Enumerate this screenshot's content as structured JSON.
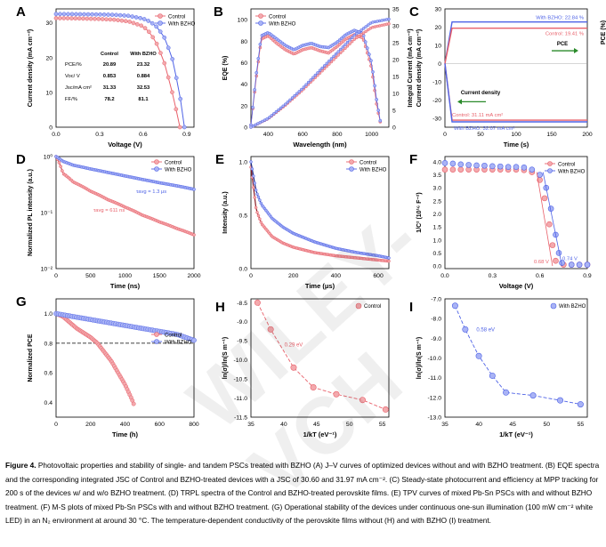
{
  "figure": {
    "colors": {
      "control": "#e8606a",
      "control_fill": "#f3a9ad",
      "bzho": "#4f63e6",
      "bzho_fill": "#a9b3f5",
      "pce_arrow": "#2a8a2a"
    },
    "panels": {
      "A": {
        "letter": "A",
        "xlabel": "Voltage (V)",
        "ylabel": "Current density (mA cm⁻²)",
        "xticks": [
          "0.0",
          "0.3",
          "0.6",
          "0.9"
        ],
        "yticks": [
          "0",
          "10",
          "20",
          "30"
        ],
        "legend": [
          "Control",
          "With BZHO"
        ],
        "table": {
          "head": [
            "",
            "Control",
            "With BZHO"
          ],
          "rows": [
            [
              "PCE/%",
              "20.89",
              "23.32"
            ],
            [
              "Voc/ V",
              "0.853",
              "0.884"
            ],
            [
              "Jsc/mA cm²",
              "31.33",
              "32.53"
            ],
            [
              "FF/%",
              "78.2",
              "81.1"
            ]
          ]
        }
      },
      "B": {
        "letter": "B",
        "xlabel": "Wavelength (nm)",
        "ylabel": "EQE (%)",
        "y2label": "Integral Current (mA cm⁻²)",
        "xticks": [
          "400",
          "600",
          "800",
          "1000"
        ],
        "yticks": [
          "0",
          "20",
          "40",
          "60",
          "80",
          "100"
        ],
        "y2ticks": [
          "0",
          "5",
          "10",
          "15",
          "20",
          "25",
          "30",
          "35"
        ],
        "legend": [
          "Control",
          "With BZHO"
        ]
      },
      "C": {
        "letter": "C",
        "xlabel": "Time (s)",
        "ylabel": "Current density (mA cm⁻²)",
        "y2label": "PCE (%)",
        "xticks": [
          "0",
          "50",
          "100",
          "150",
          "200"
        ],
        "yticks": [
          "-30",
          "-20",
          "-10",
          "0",
          "10",
          "20",
          "30"
        ],
        "ann_bzho_pce": "With BZHO: 22.84 %",
        "ann_ctrl_pce": "Control: 19.41 %",
        "ann_pce": "PCE",
        "ann_cd": "Current density",
        "ann_ctrl_cd": "Control: 31.11 mA cm²",
        "ann_bzho_cd": "With BZHO: 32.07 mA cm²"
      },
      "D": {
        "letter": "D",
        "xlabel": "Time (ns)",
        "ylabel": "Normalized PL intensity (a.u.)",
        "xticks": [
          "0",
          "500",
          "1000",
          "1500",
          "2000"
        ],
        "yticks": [
          "10⁰",
          "10⁻¹",
          "10⁻²"
        ],
        "legend": [
          "Control",
          "With BZHO"
        ],
        "ann_bzho": "τavg = 1.3 μs",
        "ann_ctrl": "τavg = 611 ns"
      },
      "E": {
        "letter": "E",
        "xlabel": "Time (μs)",
        "ylabel": "Intensity (a.u.)",
        "xticks": [
          "0",
          "200",
          "400",
          "600"
        ],
        "yticks": [
          "0.0",
          "0.5",
          "1.0"
        ],
        "legend": [
          "Control",
          "With BZHO"
        ]
      },
      "F": {
        "letter": "F",
        "xlabel": "Voltage (V)",
        "ylabel": "1/C² (10¹⁶ F⁻²)",
        "xticks": [
          "0.0",
          "0.3",
          "0.6",
          "0.9"
        ],
        "yticks": [
          "0.0",
          "0.5",
          "1.0",
          "1.5",
          "2.0",
          "2.5",
          "3.0",
          "3.5",
          "4.0"
        ],
        "legend": [
          "Control",
          "With BZHO"
        ],
        "ann_ctrl": "0.68 V",
        "ann_bzho": "0.74 V"
      },
      "G": {
        "letter": "G",
        "xlabel": "Time (h)",
        "ylabel": "Normalized PCE",
        "xticks": [
          "0",
          "200",
          "400",
          "600",
          "800"
        ],
        "yticks": [
          "0.4",
          "0.6",
          "0.8",
          "1.0"
        ],
        "legend": [
          "Control",
          "With BZHO"
        ]
      },
      "H": {
        "letter": "H",
        "xlabel": "1/kT (eV⁻¹)",
        "ylabel": "ln(σ)/ln(S m⁻¹)",
        "xticks": [
          "35",
          "40",
          "45",
          "50",
          "55"
        ],
        "yticks": [
          "-8.5",
          "-9.0",
          "-9.5",
          "-10.0",
          "-10.5",
          "-11.0",
          "-11.5"
        ],
        "legend": [
          "Control"
        ],
        "ann": "0.29 eV"
      },
      "I": {
        "letter": "I",
        "xlabel": "1/kT (eV⁻¹)",
        "ylabel": "ln(σ)/ln(S m⁻¹)",
        "xticks": [
          "35",
          "40",
          "45",
          "50",
          "55"
        ],
        "yticks": [
          "-7.0",
          "-8.0",
          "-9.0",
          "-10.0",
          "-11.0",
          "-12.0",
          "-13.0"
        ],
        "legend": [
          "With BZHO"
        ],
        "ann": "0.58 eV"
      }
    }
  },
  "chart_data": [
    {
      "panel": "A",
      "type": "line",
      "xlim": [
        0,
        0.95
      ],
      "ylim": [
        0,
        34
      ],
      "series": [
        {
          "name": "Control",
          "x": [
            0,
            0.1,
            0.2,
            0.3,
            0.4,
            0.5,
            0.6,
            0.65,
            0.7,
            0.75,
            0.8,
            0.83,
            0.853
          ],
          "y": [
            31.33,
            31.3,
            31.2,
            31.1,
            30.9,
            30.4,
            29,
            27,
            23.5,
            18,
            10,
            4.5,
            0
          ]
        },
        {
          "name": "With BZHO",
          "x": [
            0,
            0.1,
            0.2,
            0.3,
            0.4,
            0.5,
            0.6,
            0.65,
            0.7,
            0.75,
            0.8,
            0.85,
            0.884
          ],
          "y": [
            32.53,
            32.5,
            32.45,
            32.4,
            32.3,
            32,
            31.2,
            30.3,
            28.6,
            25.5,
            19.8,
            10,
            0
          ]
        }
      ]
    },
    {
      "panel": "B",
      "type": "line",
      "xlim": [
        300,
        1100
      ],
      "ylim": [
        0,
        110
      ],
      "series": [
        {
          "name": "Control",
          "x": [
            300,
            330,
            360,
            400,
            450,
            500,
            550,
            600,
            650,
            700,
            750,
            800,
            850,
            900,
            950,
            1000,
            1030,
            1050
          ],
          "y": [
            2,
            45,
            82,
            85,
            78,
            72,
            68,
            72,
            74,
            71,
            69,
            75,
            82,
            86,
            83,
            55,
            20,
            5
          ]
        },
        {
          "name": "With BZHO",
          "x": [
            300,
            330,
            360,
            400,
            450,
            500,
            550,
            600,
            650,
            700,
            750,
            800,
            850,
            900,
            950,
            1000,
            1030,
            1050
          ],
          "y": [
            2,
            48,
            85,
            88,
            82,
            76,
            72,
            76,
            78,
            75,
            74,
            79,
            86,
            90,
            87,
            60,
            24,
            6
          ]
        },
        {
          "name": "Control integral",
          "x": [
            300,
            400,
            500,
            600,
            700,
            800,
            900,
            1000,
            1100
          ],
          "y": [
            0,
            2.5,
            6.5,
            11,
            16,
            21,
            26,
            29.5,
            30.6
          ]
        },
        {
          "name": "With BZHO integral",
          "x": [
            300,
            400,
            500,
            600,
            700,
            800,
            900,
            1000,
            1100
          ],
          "y": [
            0,
            2.6,
            6.8,
            11.5,
            16.8,
            22,
            27.2,
            31,
            31.97
          ]
        }
      ]
    },
    {
      "panel": "C",
      "type": "line",
      "xlim": [
        0,
        200
      ],
      "ylim": [
        -35,
        30
      ],
      "series": [
        {
          "name": "With BZHO PCE",
          "x": [
            0,
            2,
            50,
            100,
            150,
            200
          ],
          "y": [
            0,
            22.84,
            22.84,
            22.84,
            22.84,
            22.84
          ]
        },
        {
          "name": "Control PCE",
          "x": [
            0,
            2,
            50,
            100,
            150,
            200
          ],
          "y": [
            0,
            19.41,
            19.41,
            19.41,
            19.41,
            19.41
          ]
        },
        {
          "name": "Control current density",
          "x": [
            0,
            2,
            50,
            100,
            150,
            200
          ],
          "y": [
            0,
            -31.11,
            -31.11,
            -31.11,
            -31.11,
            -31.11
          ]
        },
        {
          "name": "With BZHO current density",
          "x": [
            0,
            2,
            50,
            100,
            150,
            200
          ],
          "y": [
            0,
            -32.07,
            -32.07,
            -32.07,
            -32.07,
            -32.07
          ]
        }
      ]
    },
    {
      "panel": "D",
      "type": "scatter",
      "xlim": [
        0,
        2000
      ],
      "ylim": [
        0.01,
        1
      ],
      "series": [
        {
          "name": "Control",
          "x": [
            0,
            100,
            250,
            500,
            750,
            1000,
            1250,
            1500,
            1750,
            2000
          ],
          "y": [
            1,
            0.5,
            0.35,
            0.24,
            0.17,
            0.125,
            0.09,
            0.068,
            0.052,
            0.04
          ]
        },
        {
          "name": "With BZHO",
          "x": [
            0,
            100,
            250,
            500,
            750,
            1000,
            1250,
            1500,
            1750,
            2000
          ],
          "y": [
            1,
            0.82,
            0.7,
            0.6,
            0.52,
            0.45,
            0.39,
            0.34,
            0.3,
            0.26
          ]
        }
      ]
    },
    {
      "panel": "E",
      "type": "scatter",
      "xlim": [
        0,
        650
      ],
      "ylim": [
        0,
        1.05
      ],
      "series": [
        {
          "name": "Control",
          "x": [
            0,
            25,
            50,
            100,
            150,
            200,
            300,
            400,
            500,
            600,
            650
          ],
          "y": [
            0.95,
            0.55,
            0.42,
            0.3,
            0.24,
            0.2,
            0.15,
            0.12,
            0.1,
            0.08,
            0.07
          ]
        },
        {
          "name": "With BZHO",
          "x": [
            0,
            25,
            50,
            100,
            150,
            200,
            300,
            400,
            500,
            600,
            650
          ],
          "y": [
            1.0,
            0.72,
            0.6,
            0.47,
            0.39,
            0.33,
            0.25,
            0.19,
            0.15,
            0.12,
            0.1
          ]
        }
      ]
    },
    {
      "panel": "F",
      "type": "line",
      "xlim": [
        0,
        0.9
      ],
      "ylim": [
        -0.1,
        4.2
      ],
      "series": [
        {
          "name": "Control",
          "x": [
            0,
            0.05,
            0.1,
            0.15,
            0.2,
            0.25,
            0.3,
            0.35,
            0.4,
            0.45,
            0.5,
            0.55,
            0.6,
            0.63,
            0.66,
            0.68,
            0.7,
            0.75,
            0.8,
            0.85,
            0.9
          ],
          "y": [
            3.7,
            3.7,
            3.7,
            3.7,
            3.7,
            3.7,
            3.7,
            3.7,
            3.7,
            3.7,
            3.68,
            3.6,
            3.3,
            2.6,
            1.6,
            0.8,
            0.2,
            0.05,
            0.05,
            0.05,
            0.05
          ]
        },
        {
          "name": "With BZHO",
          "x": [
            0,
            0.05,
            0.1,
            0.15,
            0.2,
            0.25,
            0.3,
            0.35,
            0.4,
            0.45,
            0.5,
            0.55,
            0.6,
            0.64,
            0.67,
            0.7,
            0.72,
            0.74,
            0.8,
            0.85,
            0.9
          ],
          "y": [
            3.95,
            3.93,
            3.9,
            3.88,
            3.86,
            3.85,
            3.83,
            3.82,
            3.8,
            3.8,
            3.78,
            3.7,
            3.5,
            3.0,
            2.2,
            1.2,
            0.5,
            0.12,
            0.05,
            0.05,
            0.05
          ]
        }
      ]
    },
    {
      "panel": "G",
      "type": "scatter",
      "xlim": [
        0,
        800
      ],
      "ylim": [
        0.3,
        1.1
      ],
      "series": [
        {
          "name": "Control",
          "x": [
            0,
            40,
            80,
            120,
            160,
            200,
            240,
            280,
            320,
            360,
            400,
            440,
            450
          ],
          "y": [
            1.0,
            0.98,
            0.94,
            0.9,
            0.87,
            0.84,
            0.8,
            0.74,
            0.68,
            0.6,
            0.52,
            0.42,
            0.39
          ]
        },
        {
          "name": "With BZHO",
          "x": [
            0,
            100,
            200,
            300,
            400,
            500,
            600,
            700,
            800
          ],
          "y": [
            1.0,
            0.98,
            0.96,
            0.94,
            0.92,
            0.9,
            0.88,
            0.86,
            0.82
          ]
        }
      ]
    },
    {
      "panel": "H",
      "type": "scatter",
      "xlim": [
        35,
        56
      ],
      "ylim": [
        -11.5,
        -8.4
      ],
      "series": [
        {
          "name": "Control",
          "x": [
            36,
            38,
            41.5,
            44.5,
            48,
            52,
            55.5
          ],
          "y": [
            -8.5,
            -9.2,
            -10.2,
            -10.72,
            -10.9,
            -11.05,
            -11.3
          ]
        }
      ]
    },
    {
      "panel": "I",
      "type": "scatter",
      "xlim": [
        35,
        56
      ],
      "ylim": [
        -13,
        -7
      ],
      "series": [
        {
          "name": "With BZHO",
          "x": [
            36.5,
            38,
            40,
            42,
            44,
            48,
            52,
            55
          ],
          "y": [
            -7.35,
            -8.55,
            -9.9,
            -10.9,
            -11.75,
            -11.9,
            -12.15,
            -12.35
          ]
        }
      ]
    }
  ],
  "caption": {
    "lead": "Figure 4.",
    "text": " Photovoltaic properties and stability of single- and tandem PSCs treated with BZHO (A) J–V curves of optimized devices without and with BZHO treatment. (B) EQE spectra and the corresponding integrated JSC of Control and BZHO-treated devices with a JSC of 30.60 and 31.97 mA cm⁻². (C) Steady-state photocurrent and efficiency at MPP tracking for 200 s of the devices w/ and w/o BZHO treatment. (D) TRPL spectra of the Control and BZHO-treated perovskite films. (E) TPV curves of mixed Pb-Sn PSCs with and without BZHO treatment. (F) M-S plots of mixed Pb-Sn PSCs with and without BZHO treatment. (G) Operational stability of the devices under continuous one-sun illumination (100 mW cm⁻² white LED) in an N₂ environment at around 30 °C. The temperature-dependent conductivity of the perovskite films without (H) and with BZHO (I) treatment."
  },
  "watermark": "WILEY-VCH"
}
